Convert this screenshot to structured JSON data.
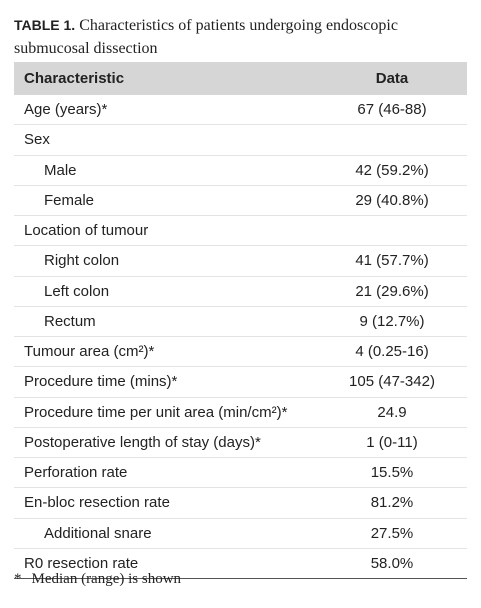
{
  "table_caption": {
    "label": "TABLE 1.",
    "text": "Characteristics of patients undergoing endoscopic submucosal dissection"
  },
  "table": {
    "header": [
      "Characteristic",
      "Data"
    ],
    "rows": [
      {
        "label": "Age (years)*",
        "value": "67 (46-88)"
      },
      {
        "label": "Sex"
      },
      {
        "label": "Male",
        "value": "42 (59.2%)",
        "indent": true
      },
      {
        "label": "Female",
        "value": "29 (40.8%)",
        "indent": true
      },
      {
        "label": "Location of tumour"
      },
      {
        "label": "Right colon",
        "value": "41 (57.7%)",
        "indent": true
      },
      {
        "label": "Left colon",
        "value": "21 (29.6%)",
        "indent": true
      },
      {
        "label": "Rectum",
        "value": "9 (12.7%)",
        "indent": true
      },
      {
        "label": "Tumour area (cm²)*",
        "value": "4 (0.25-16)"
      },
      {
        "label": "Procedure time (mins)*",
        "value": "105 (47-342)"
      },
      {
        "label": "Procedure time per unit area (min/cm²)*",
        "value": "24.9"
      },
      {
        "label": "Postoperative length of stay (days)*",
        "value": "1 (0-11)"
      },
      {
        "label": "Perforation rate",
        "value": "15.5%"
      },
      {
        "label": "En-bloc resection rate",
        "value": "81.2%"
      },
      {
        "label": "Additional snare",
        "value": "27.5%",
        "indent": true
      },
      {
        "label": "R0 resection rate",
        "value": "58.0%"
      }
    ]
  },
  "footnote": {
    "mark": "*",
    "text": "Median (range) is shown"
  }
}
